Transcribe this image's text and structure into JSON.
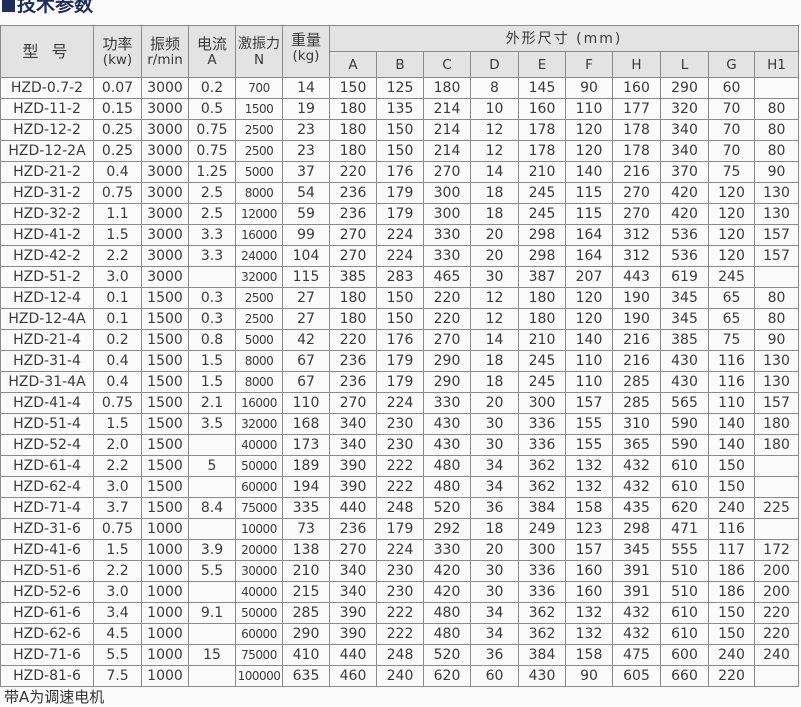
{
  "title": "技术参数",
  "colors": {
    "title": "#1e2d5a",
    "header_bg": "#e3e3e3",
    "grid": "#8a8a8a"
  },
  "headers": {
    "model": "型 号",
    "power": [
      "功率",
      "(kw)"
    ],
    "frequency": [
      "振频",
      "r/min"
    ],
    "current": [
      "电流",
      "A"
    ],
    "force": [
      "激振力",
      "N"
    ],
    "weight": [
      "重量",
      "(kg)"
    ],
    "dimensions": "外形尺寸 (mm)",
    "dim_cols": [
      "A",
      "B",
      "C",
      "D",
      "E",
      "F",
      "H",
      "L",
      "G",
      "H1"
    ]
  },
  "rows": [
    [
      "HZD-0.7-2",
      "0.07",
      "3000",
      "0.2",
      "700",
      "14",
      "150",
      "125",
      "180",
      "8",
      "145",
      "90",
      "160",
      "290",
      "60",
      ""
    ],
    [
      "HZD-11-2",
      "0.15",
      "3000",
      "0.5",
      "1500",
      "19",
      "180",
      "135",
      "214",
      "10",
      "160",
      "110",
      "177",
      "320",
      "70",
      "80"
    ],
    [
      "HZD-12-2",
      "0.25",
      "3000",
      "0.75",
      "2500",
      "23",
      "180",
      "150",
      "214",
      "12",
      "178",
      "120",
      "178",
      "340",
      "70",
      "80"
    ],
    [
      "HZD-12-2A",
      "0.25",
      "3000",
      "0.75",
      "2500",
      "23",
      "180",
      "150",
      "214",
      "12",
      "178",
      "120",
      "178",
      "340",
      "70",
      "80"
    ],
    [
      "HZD-21-2",
      "0.4",
      "3000",
      "1.25",
      "5000",
      "37",
      "220",
      "176",
      "270",
      "14",
      "210",
      "140",
      "216",
      "370",
      "75",
      "90"
    ],
    [
      "HZD-31-2",
      "0.75",
      "3000",
      "2.5",
      "8000",
      "54",
      "236",
      "179",
      "300",
      "18",
      "245",
      "115",
      "270",
      "420",
      "120",
      "130"
    ],
    [
      "HZD-32-2",
      "1.1",
      "3000",
      "2.5",
      "12000",
      "59",
      "236",
      "179",
      "300",
      "18",
      "245",
      "115",
      "270",
      "420",
      "120",
      "130"
    ],
    [
      "HZD-41-2",
      "1.5",
      "3000",
      "3.3",
      "16000",
      "99",
      "270",
      "224",
      "330",
      "20",
      "298",
      "164",
      "312",
      "536",
      "120",
      "157"
    ],
    [
      "HZD-42-2",
      "2.2",
      "3000",
      "3.3",
      "24000",
      "104",
      "270",
      "224",
      "330",
      "20",
      "298",
      "164",
      "312",
      "536",
      "120",
      "157"
    ],
    [
      "HZD-51-2",
      "3.0",
      "3000",
      "",
      "32000",
      "115",
      "385",
      "283",
      "465",
      "30",
      "387",
      "207",
      "443",
      "619",
      "245",
      ""
    ],
    [
      "HZD-12-4",
      "0.1",
      "1500",
      "0.3",
      "2500",
      "27",
      "180",
      "150",
      "220",
      "12",
      "180",
      "120",
      "190",
      "345",
      "65",
      "80"
    ],
    [
      "HZD-12-4A",
      "0.1",
      "1500",
      "0.3",
      "2500",
      "27",
      "180",
      "150",
      "220",
      "12",
      "180",
      "120",
      "190",
      "345",
      "65",
      "80"
    ],
    [
      "HZD-21-4",
      "0.2",
      "1500",
      "0.8",
      "5000",
      "42",
      "220",
      "176",
      "270",
      "14",
      "210",
      "140",
      "216",
      "385",
      "75",
      "90"
    ],
    [
      "HZD-31-4",
      "0.4",
      "1500",
      "1.5",
      "8000",
      "67",
      "236",
      "179",
      "290",
      "18",
      "245",
      "110",
      "216",
      "430",
      "116",
      "130"
    ],
    [
      "HZD-31-4A",
      "0.4",
      "1500",
      "1.5",
      "8000",
      "67",
      "236",
      "179",
      "290",
      "18",
      "245",
      "110",
      "285",
      "430",
      "116",
      "130"
    ],
    [
      "HZD-41-4",
      "0.75",
      "1500",
      "2.1",
      "16000",
      "110",
      "270",
      "224",
      "330",
      "20",
      "300",
      "157",
      "285",
      "565",
      "110",
      "157"
    ],
    [
      "HZD-51-4",
      "1.5",
      "1500",
      "3.5",
      "32000",
      "168",
      "340",
      "230",
      "430",
      "30",
      "336",
      "155",
      "310",
      "590",
      "140",
      "180"
    ],
    [
      "HZD-52-4",
      "2.0",
      "1500",
      "",
      "40000",
      "173",
      "340",
      "230",
      "430",
      "30",
      "336",
      "155",
      "365",
      "590",
      "140",
      "180"
    ],
    [
      "HZD-61-4",
      "2.2",
      "1500",
      "5",
      "50000",
      "189",
      "390",
      "222",
      "480",
      "34",
      "362",
      "132",
      "432",
      "610",
      "150",
      ""
    ],
    [
      "HZD-62-4",
      "3.0",
      "1500",
      "",
      "60000",
      "194",
      "390",
      "222",
      "480",
      "34",
      "362",
      "132",
      "432",
      "610",
      "150",
      ""
    ],
    [
      "HZD-71-4",
      "3.7",
      "1500",
      "8.4",
      "75000",
      "335",
      "440",
      "248",
      "520",
      "36",
      "384",
      "158",
      "435",
      "620",
      "240",
      "225"
    ],
    [
      "HZD-31-6",
      "0.75",
      "1000",
      "",
      "10000",
      "73",
      "236",
      "179",
      "292",
      "18",
      "249",
      "123",
      "298",
      "471",
      "116",
      ""
    ],
    [
      "HZD-41-6",
      "1.5",
      "1000",
      "3.9",
      "20000",
      "138",
      "270",
      "224",
      "330",
      "20",
      "300",
      "157",
      "345",
      "555",
      "117",
      "172"
    ],
    [
      "HZD-51-6",
      "2.2",
      "1000",
      "5.5",
      "30000",
      "210",
      "340",
      "230",
      "420",
      "30",
      "336",
      "160",
      "391",
      "510",
      "186",
      "200"
    ],
    [
      "HZD-52-6",
      "3.0",
      "1000",
      "",
      "40000",
      "215",
      "340",
      "230",
      "420",
      "30",
      "336",
      "160",
      "391",
      "510",
      "186",
      "200"
    ],
    [
      "HZD-61-6",
      "3.4",
      "1000",
      "9.1",
      "50000",
      "285",
      "390",
      "222",
      "480",
      "34",
      "362",
      "132",
      "432",
      "610",
      "150",
      "220"
    ],
    [
      "HZD-62-6",
      "4.5",
      "1000",
      "",
      "60000",
      "290",
      "390",
      "222",
      "480",
      "34",
      "362",
      "132",
      "432",
      "610",
      "150",
      "220"
    ],
    [
      "HZD-71-6",
      "5.5",
      "1000",
      "15",
      "75000",
      "410",
      "440",
      "248",
      "520",
      "36",
      "384",
      "158",
      "475",
      "600",
      "240",
      "240"
    ],
    [
      "HZD-81-6",
      "7.5",
      "1000",
      "",
      "100000",
      "635",
      "460",
      "240",
      "620",
      "60",
      "430",
      "90",
      "605",
      "660",
      "220",
      ""
    ]
  ],
  "footnote": "带A为调速电机"
}
